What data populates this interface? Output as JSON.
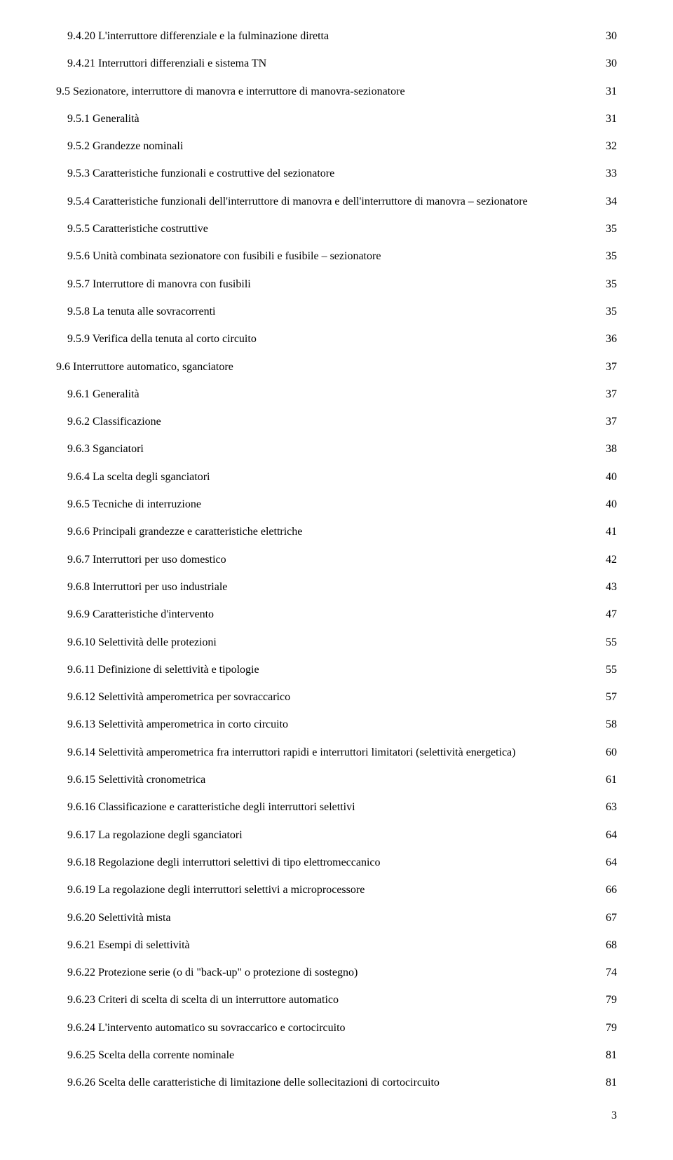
{
  "entries": [
    {
      "indent": 1,
      "text": "9.4.20 L'interruttore differenziale e la fulminazione diretta",
      "page": "30"
    },
    {
      "indent": 1,
      "text": "9.4.21 Interruttori differenziali e sistema TN",
      "page": "30"
    },
    {
      "indent": 0,
      "text": "9.5 Sezionatore, interruttore di manovra e interruttore di manovra-sezionatore",
      "page": "31"
    },
    {
      "indent": 1,
      "text": "9.5.1 Generalità",
      "page": "31"
    },
    {
      "indent": 1,
      "text": "9.5.2 Grandezze nominali",
      "page": "32"
    },
    {
      "indent": 1,
      "text": "9.5.3 Caratteristiche funzionali e costruttive del sezionatore",
      "page": "33"
    },
    {
      "indent": 1,
      "text": "9.5.4 Caratteristiche funzionali dell'interruttore di manovra e dell'interruttore di manovra – sezionatore",
      "page": "34"
    },
    {
      "indent": 1,
      "text": "9.5.5 Caratteristiche costruttive",
      "page": "35"
    },
    {
      "indent": 1,
      "text": "9.5.6 Unità combinata sezionatore con fusibili e fusibile – sezionatore",
      "page": "35"
    },
    {
      "indent": 1,
      "text": "9.5.7 Interruttore di manovra con fusibili",
      "page": "35"
    },
    {
      "indent": 1,
      "text": "9.5.8 La tenuta alle sovracorrenti",
      "page": "35"
    },
    {
      "indent": 1,
      "text": "9.5.9 Verifica della tenuta al corto circuito",
      "page": "36"
    },
    {
      "indent": 0,
      "text": "9.6 Interruttore automatico, sganciatore",
      "page": "37"
    },
    {
      "indent": 1,
      "text": "9.6.1 Generalità",
      "page": "37"
    },
    {
      "indent": 1,
      "text": "9.6.2 Classificazione",
      "page": "37"
    },
    {
      "indent": 1,
      "text": "9.6.3 Sganciatori",
      "page": "38"
    },
    {
      "indent": 1,
      "text": "9.6.4 La scelta degli sganciatori",
      "page": "40"
    },
    {
      "indent": 1,
      "text": "9.6.5 Tecniche di interruzione",
      "page": "40"
    },
    {
      "indent": 1,
      "text": "9.6.6 Principali grandezze e caratteristiche elettriche",
      "page": "41"
    },
    {
      "indent": 1,
      "text": "9.6.7 Interruttori per uso domestico",
      "page": "42"
    },
    {
      "indent": 1,
      "text": "9.6.8 Interruttori per uso industriale",
      "page": "43"
    },
    {
      "indent": 1,
      "text": "9.6.9 Caratteristiche d'intervento",
      "page": "47"
    },
    {
      "indent": 1,
      "text": "9.6.10 Selettività delle protezioni",
      "page": "55"
    },
    {
      "indent": 1,
      "text": "9.6.11 Definizione di selettività e tipologie",
      "page": "55"
    },
    {
      "indent": 1,
      "text": "9.6.12 Selettività amperometrica per sovraccarico",
      "page": "57"
    },
    {
      "indent": 1,
      "text": "9.6.13 Selettività amperometrica in corto circuito",
      "page": "58"
    },
    {
      "indent": 1,
      "text": "9.6.14 Selettività amperometrica fra interruttori rapidi e interruttori limitatori (selettività energetica)",
      "page": "60"
    },
    {
      "indent": 1,
      "text": "9.6.15 Selettività cronometrica",
      "page": "61"
    },
    {
      "indent": 1,
      "text": "9.6.16 Classificazione e caratteristiche degli interruttori selettivi",
      "page": "63"
    },
    {
      "indent": 1,
      "text": "9.6.17 La regolazione degli sganciatori",
      "page": "64"
    },
    {
      "indent": 1,
      "text": "9.6.18 Regolazione degli interruttori selettivi di tipo elettromeccanico",
      "page": "64"
    },
    {
      "indent": 1,
      "text": "9.6.19 La regolazione degli interruttori selettivi a microprocessore",
      "page": "66"
    },
    {
      "indent": 1,
      "text": "9.6.20 Selettività mista",
      "page": "67"
    },
    {
      "indent": 1,
      "text": "9.6.21 Esempi di selettività",
      "page": "68"
    },
    {
      "indent": 1,
      "text": "9.6.22 Protezione serie (o di \"back-up\" o protezione di sostegno)",
      "page": "74"
    },
    {
      "indent": 1,
      "text": "9.6.23 Criteri di scelta di scelta di un interruttore automatico",
      "page": "79"
    },
    {
      "indent": 1,
      "text": "9.6.24 L'intervento automatico su sovraccarico e cortocircuito",
      "page": "79"
    },
    {
      "indent": 1,
      "text": "9.6.25 Scelta della corrente nominale",
      "page": "81"
    },
    {
      "indent": 1,
      "text": "9.6.26 Scelta delle caratteristiche di limitazione delle sollecitazioni di cortocircuito",
      "page": "81"
    }
  ],
  "page_number": "3"
}
